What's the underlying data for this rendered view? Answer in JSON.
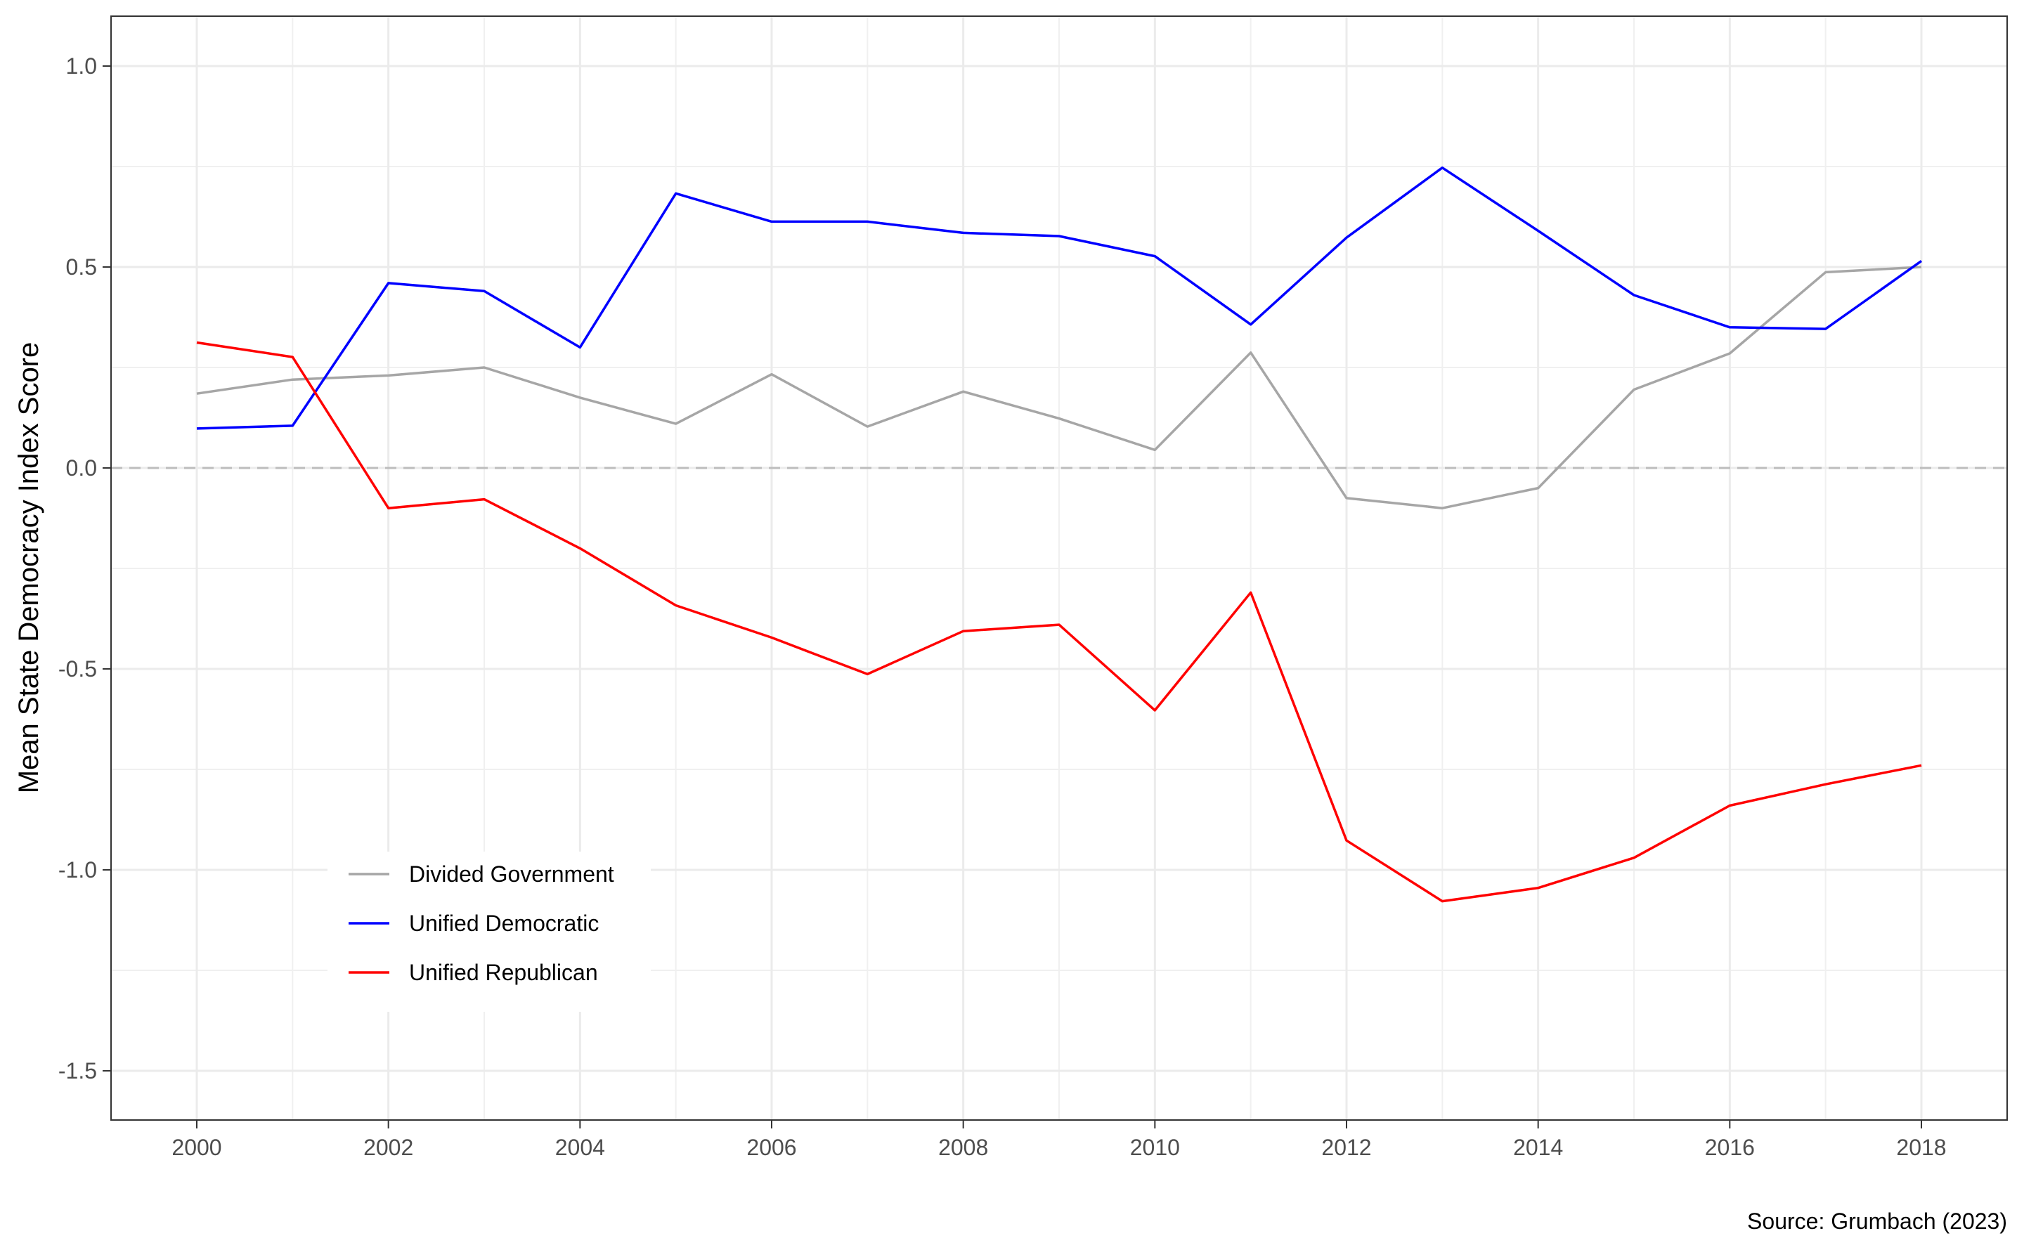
{
  "chart_data": {
    "type": "line",
    "title": "",
    "xlabel": "",
    "ylabel": "Mean State Democracy Index Score",
    "caption": "Source: Grumbach (2023)",
    "xlim": [
      2000,
      2018
    ],
    "ylim": [
      -1.5,
      1.0
    ],
    "x_ticks": [
      2000,
      2002,
      2004,
      2006,
      2008,
      2010,
      2012,
      2014,
      2016,
      2018
    ],
    "y_ticks": [
      1.0,
      0.5,
      0.0,
      -0.5,
      -1.0,
      -1.5
    ],
    "x_tick_labels": [
      "2000",
      "2002",
      "2004",
      "2006",
      "2008",
      "2010",
      "2012",
      "2014",
      "2016",
      "2018"
    ],
    "y_tick_labels": [
      "1.0",
      "0.5",
      "0.0",
      "-0.5",
      "-1.0",
      "-1.5"
    ],
    "reference_line": {
      "y": 0.0,
      "style": "dashed",
      "color": "#bdbdbd"
    },
    "grid": true,
    "legend_position": "bottom-left",
    "x": [
      2000,
      2001,
      2002,
      2003,
      2004,
      2005,
      2006,
      2007,
      2008,
      2009,
      2010,
      2011,
      2012,
      2013,
      2014,
      2015,
      2016,
      2017,
      2018
    ],
    "series": [
      {
        "name": "Divided Government",
        "color": "#a6a6a6",
        "values": [
          0.185,
          0.22,
          0.23,
          0.25,
          0.175,
          0.11,
          0.233,
          0.103,
          0.19,
          0.123,
          0.045,
          0.287,
          -0.075,
          -0.1,
          -0.05,
          0.195,
          0.285,
          0.487,
          0.5
        ]
      },
      {
        "name": "Unified Democratic",
        "color": "#0000ff",
        "values": [
          0.098,
          0.105,
          0.46,
          0.44,
          0.3,
          0.683,
          0.613,
          0.613,
          0.585,
          0.577,
          0.527,
          0.357,
          0.573,
          0.747,
          0.59,
          0.43,
          0.35,
          0.346,
          0.515
        ]
      },
      {
        "name": "Unified Republican",
        "color": "#ff0000",
        "values": [
          0.312,
          0.276,
          -0.1,
          -0.078,
          -0.2,
          -0.342,
          -0.422,
          -0.513,
          -0.406,
          -0.39,
          -0.603,
          -0.31,
          -0.927,
          -1.078,
          -1.045,
          -0.97,
          -0.84,
          -0.787,
          -0.74
        ]
      }
    ]
  }
}
